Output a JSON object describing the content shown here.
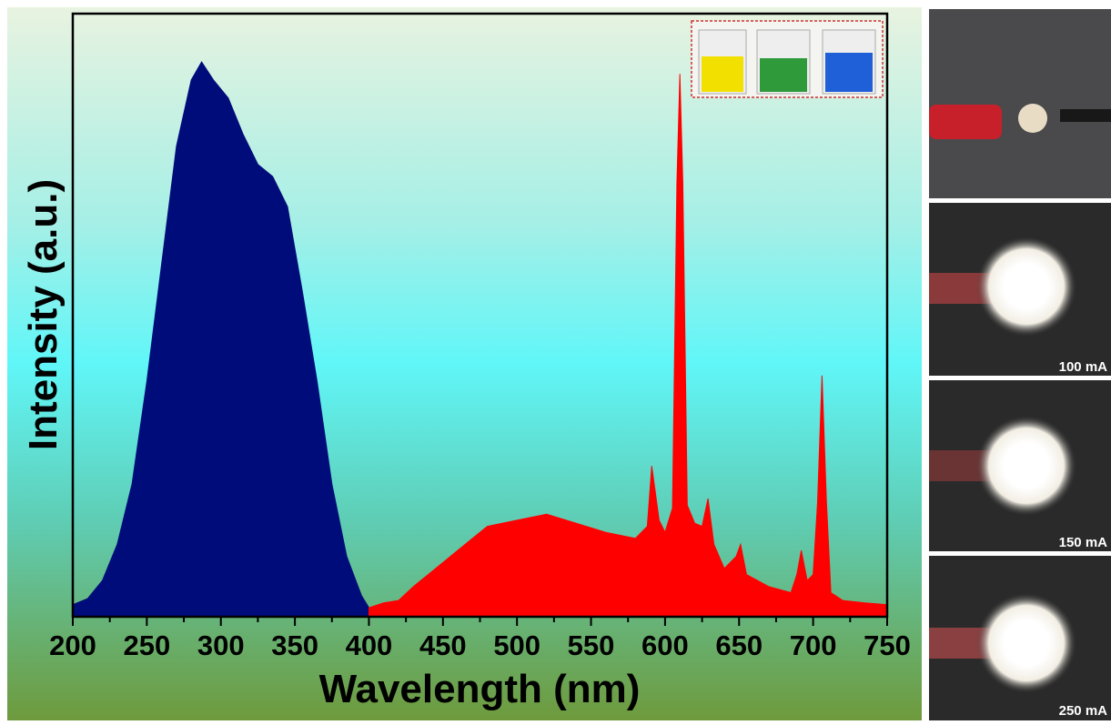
{
  "chart_data": {
    "type": "area",
    "xlabel": "Wavelength (nm)",
    "ylabel": "Intensity (a.u.)",
    "xlim": [
      200,
      750
    ],
    "xticks": [
      200,
      250,
      300,
      350,
      400,
      450,
      500,
      550,
      600,
      650,
      700,
      750
    ],
    "xminor_ticks": [
      225,
      275,
      325,
      375,
      425,
      475,
      525,
      575,
      625,
      675,
      725
    ],
    "ylim": [
      0,
      100
    ],
    "series": [
      {
        "color": "#000c7a",
        "x": [
          200,
          210,
          220,
          230,
          240,
          250,
          260,
          270,
          280,
          287,
          295,
          305,
          315,
          325,
          335,
          345,
          355,
          365,
          375,
          385,
          395,
          400
        ],
        "values": [
          2,
          3,
          6,
          12,
          22,
          39,
          58.5,
          78,
          89,
          92,
          89,
          86,
          80,
          75,
          73,
          68,
          54,
          39,
          22,
          10,
          3.5,
          1.5
        ]
      },
      {
        "color": "#ff0000",
        "x": [
          400,
          410,
          420,
          430,
          440,
          450,
          460,
          470,
          480,
          500,
          520,
          540,
          560,
          580,
          588,
          591,
          596,
          600,
          605,
          608,
          610,
          612,
          615,
          620,
          625,
          629,
          633,
          640,
          648,
          651,
          655,
          670,
          685,
          689,
          692,
          696,
          700,
          703,
          706,
          709,
          712,
          720,
          735,
          750
        ],
        "values": [
          1.5,
          2.3,
          2.7,
          5,
          7,
          9,
          11,
          13,
          15,
          16,
          17,
          15.5,
          14,
          13,
          15,
          25,
          16,
          14,
          18,
          72,
          90,
          72,
          18.5,
          15.5,
          15,
          19.6,
          12,
          8,
          10,
          12,
          7,
          5,
          4,
          7,
          11,
          6,
          7,
          19,
          40,
          19,
          4,
          2.7,
          2.3,
          2
        ]
      }
    ]
  },
  "photos": {
    "labels": [
      "100 mA",
      "150 mA",
      "250 mA"
    ]
  }
}
